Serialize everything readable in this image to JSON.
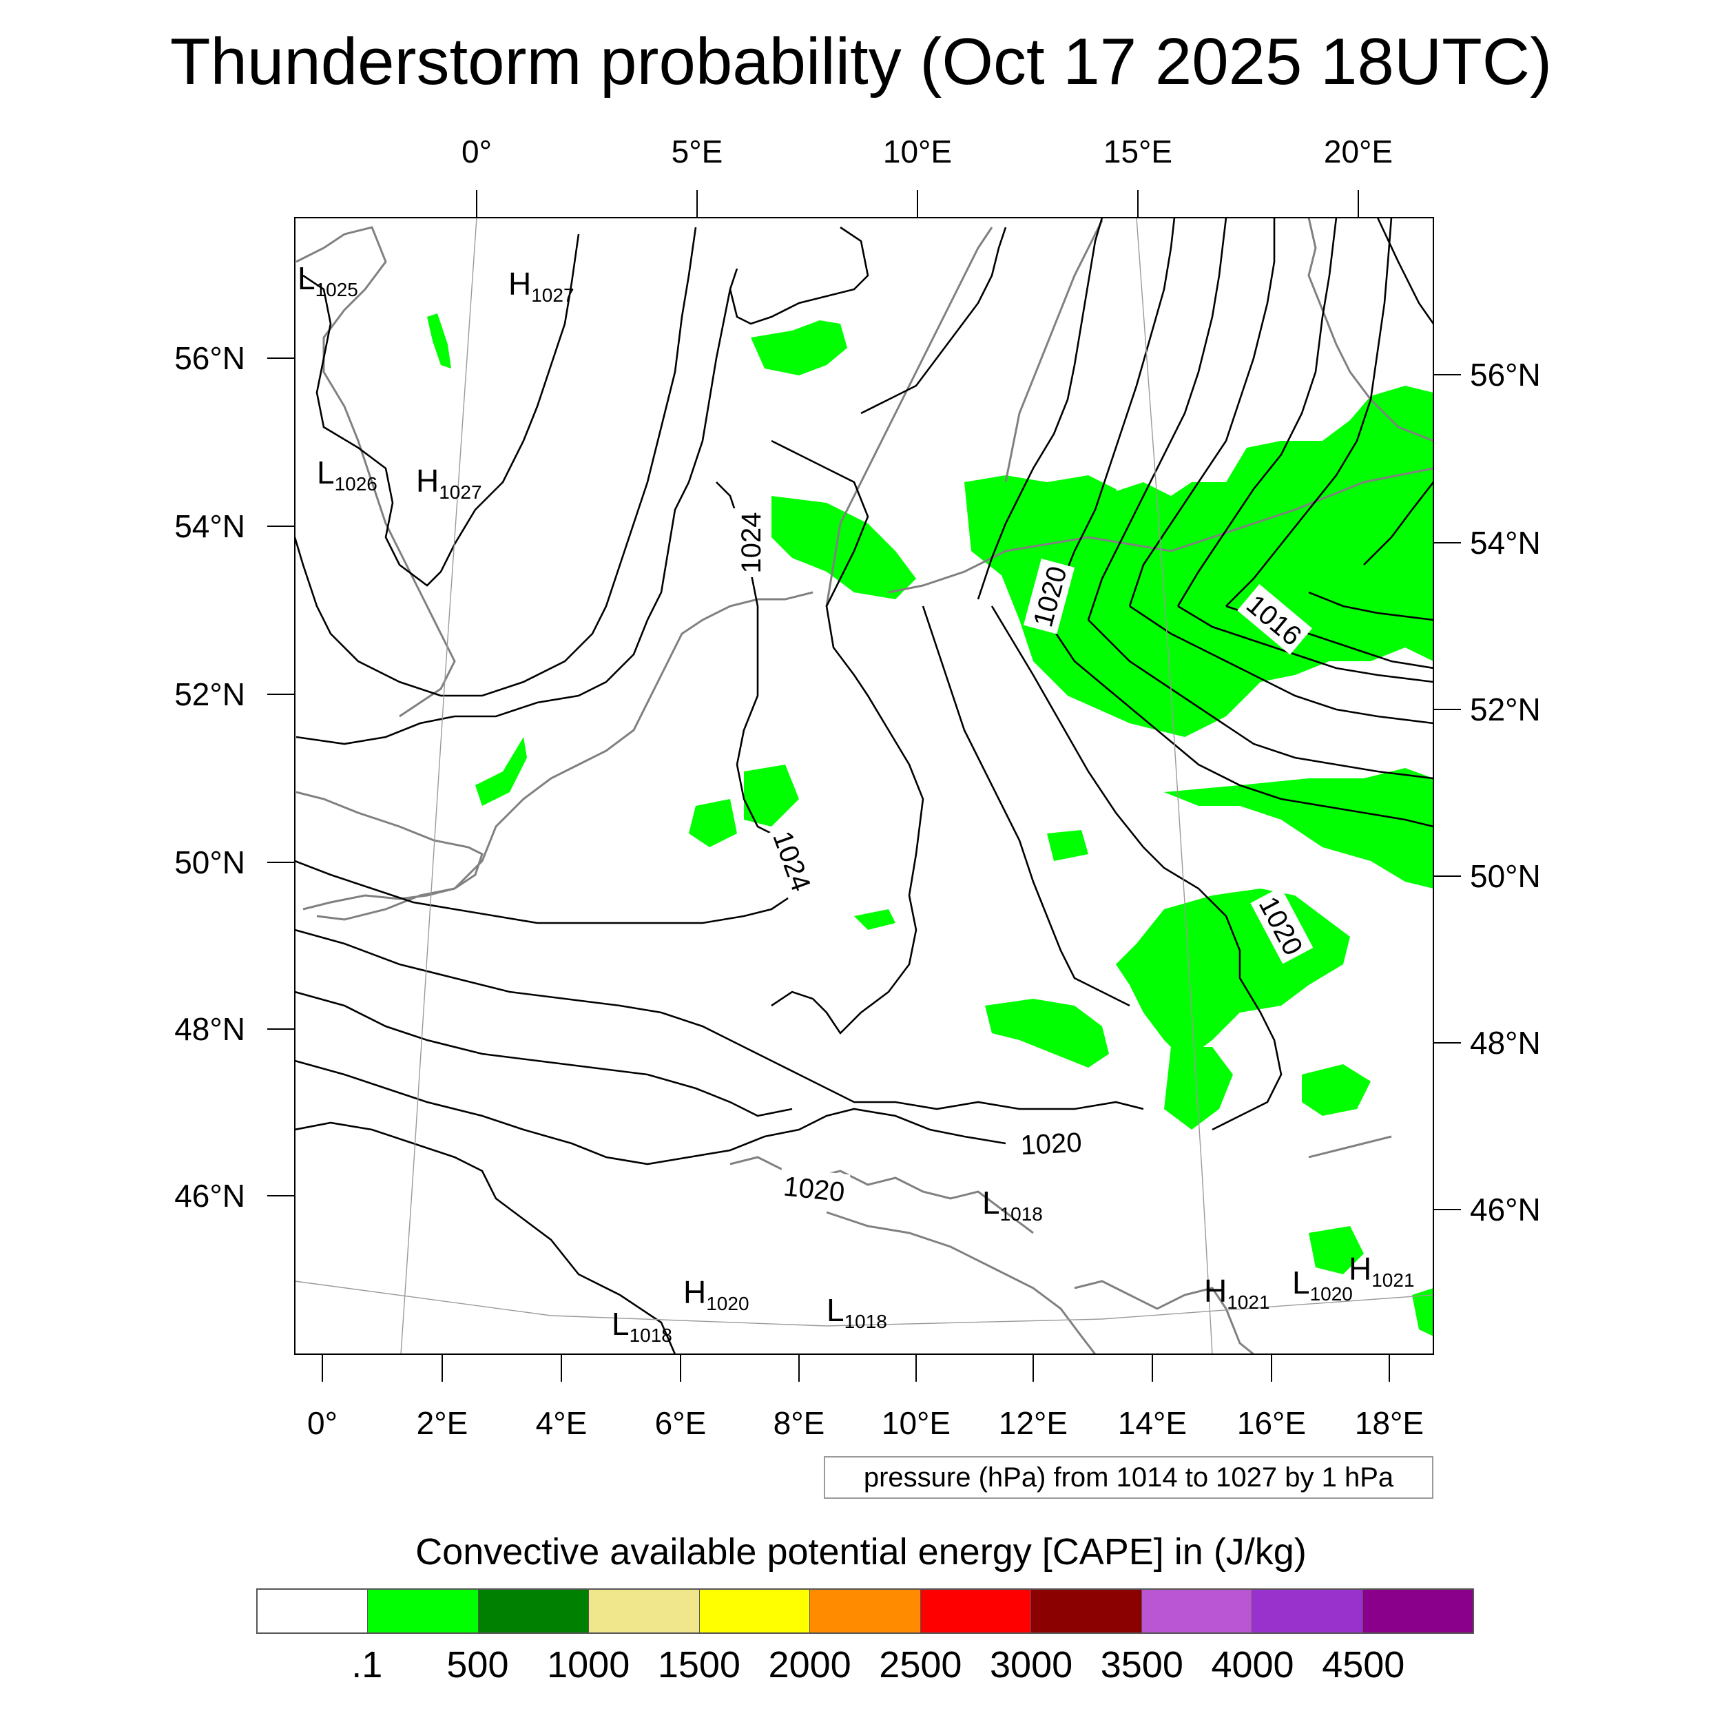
{
  "title": "Thunderstorm probability (Oct 17 2025 18UTC)",
  "top_lon_labels": [
    "0°",
    "5°E",
    "10°E",
    "15°E",
    "20°E"
  ],
  "bottom_lon_labels": [
    "0°",
    "2°E",
    "4°E",
    "6°E",
    "8°E",
    "10°E",
    "12°E",
    "14°E",
    "16°E",
    "18°E"
  ],
  "left_lat_labels": [
    "56°N",
    "54°N",
    "52°N",
    "50°N",
    "48°N",
    "46°N"
  ],
  "right_lat_labels": [
    "56°N",
    "54°N",
    "52°N",
    "50°N",
    "48°N",
    "46°N"
  ],
  "pressure_centers": [
    {
      "letter": "L",
      "value": "1025"
    },
    {
      "letter": "H",
      "value": "1027"
    },
    {
      "letter": "L",
      "value": "1026"
    },
    {
      "letter": "H",
      "value": "1027"
    },
    {
      "letter": "L",
      "value": "1018"
    },
    {
      "letter": "H",
      "value": "1020"
    },
    {
      "letter": "L",
      "value": "1018"
    },
    {
      "letter": "L",
      "value": "1018"
    },
    {
      "letter": "H",
      "value": "1021"
    },
    {
      "letter": "L",
      "value": "1020"
    },
    {
      "letter": "H",
      "value": "1021"
    }
  ],
  "isobar_labels": [
    "1024",
    "1024",
    "1020",
    "1016",
    "1020",
    "1020",
    "1020"
  ],
  "pressure_note": "pressure (hPa) from 1014 to 1027 by 1 hPa",
  "legend": {
    "title": "Convective available potential energy [CAPE] in (J/kg)",
    "colors": [
      "#ffffff",
      "#00ff00",
      "#008000",
      "#f0e68c",
      "#ffff00",
      "#ff8c00",
      "#ff0000",
      "#8b0000",
      "#ba55d3",
      "#9932cc",
      "#8b008b"
    ],
    "labels": [
      ".1",
      "500",
      "1000",
      "1500",
      "2000",
      "2500",
      "3000",
      "3500",
      "4000",
      "4500"
    ]
  }
}
